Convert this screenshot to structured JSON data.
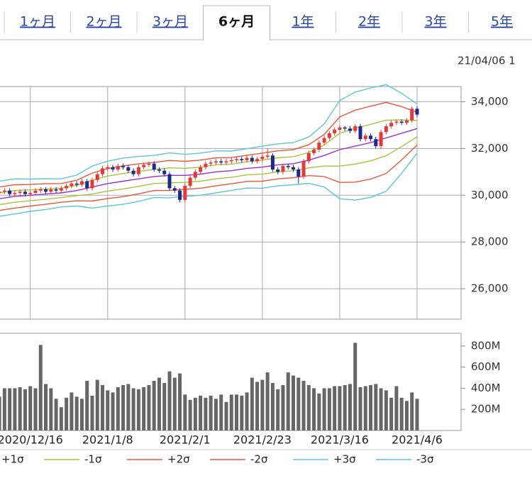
{
  "tabs": [
    "1ヶ月",
    "2ヶ月",
    "3ヶ月",
    "6ヶ月",
    "1年",
    "2年",
    "3年",
    "5年"
  ],
  "selected_tab": 3,
  "date": "21/04/06 1",
  "chart_data": [
    {
      "type": "candlestick",
      "open": [
        30100,
        30150,
        30200,
        30050,
        30100,
        30150,
        30050,
        30100,
        30200,
        30250,
        30150,
        30250,
        30200,
        30300,
        30400,
        30500,
        30450,
        30600,
        30300,
        30650,
        30900,
        31150,
        31200,
        31100,
        31250,
        31200,
        31050,
        30900,
        31200,
        31300,
        31350,
        31100,
        31050,
        30900,
        30300,
        30200,
        29800,
        30400,
        30750,
        31000,
        31200,
        31350,
        31400,
        31450,
        31400,
        31450,
        31500,
        31550,
        31500,
        31600,
        31450,
        31550,
        31650,
        31700,
        31100,
        31000,
        31250,
        31200,
        31100,
        30800,
        31450,
        31800,
        31950,
        32250,
        32450,
        32650,
        32800,
        32900,
        32850,
        32750,
        32950,
        32400,
        32550,
        32400,
        32100,
        32700,
        32950,
        33100,
        33150,
        33100,
        33200,
        33700
      ],
      "high": [
        30250,
        30300,
        30300,
        30200,
        30250,
        30250,
        30200,
        30300,
        30350,
        30350,
        30350,
        30350,
        30400,
        30500,
        30600,
        30600,
        30700,
        30700,
        30750,
        31000,
        31250,
        31300,
        31300,
        31350,
        31350,
        31300,
        31150,
        31300,
        31400,
        31450,
        31450,
        31200,
        31150,
        31000,
        30400,
        30300,
        30500,
        30850,
        31100,
        31300,
        31450,
        31500,
        31550,
        31550,
        31550,
        31600,
        31650,
        31650,
        31700,
        31700,
        31650,
        31750,
        32000,
        31800,
        31200,
        31350,
        31350,
        31300,
        31200,
        31550,
        31900,
        32050,
        32350,
        32550,
        32750,
        32900,
        33000,
        32950,
        32950,
        33050,
        33050,
        32650,
        32650,
        32500,
        32800,
        33050,
        33200,
        33250,
        33250,
        33300,
        33800,
        33800
      ],
      "low": [
        30000,
        30050,
        29950,
        29950,
        30000,
        29950,
        29950,
        30000,
        30100,
        30050,
        30050,
        30100,
        30100,
        30200,
        30300,
        30350,
        30350,
        30200,
        30200,
        30550,
        30800,
        31050,
        31000,
        31000,
        31100,
        30950,
        30800,
        30800,
        31100,
        31200,
        31000,
        30950,
        30800,
        30200,
        30100,
        29700,
        29700,
        30300,
        30650,
        30900,
        31100,
        31250,
        31300,
        31300,
        31300,
        31350,
        31400,
        31400,
        31400,
        31350,
        31350,
        31450,
        31550,
        31000,
        30900,
        30900,
        31100,
        31000,
        30500,
        30700,
        31350,
        31700,
        31850,
        32150,
        32350,
        32550,
        32700,
        32750,
        32650,
        32650,
        32300,
        32300,
        32300,
        32000,
        32000,
        32600,
        32850,
        33000,
        33000,
        33000,
        33100,
        33350
      ],
      "close": [
        30150,
        30200,
        30050,
        30100,
        30150,
        30050,
        30100,
        30200,
        30250,
        30150,
        30250,
        30200,
        30300,
        30400,
        30500,
        30450,
        30600,
        30300,
        30650,
        30900,
        31150,
        31200,
        31100,
        31250,
        31200,
        31050,
        30900,
        31200,
        31300,
        31350,
        31100,
        31050,
        30900,
        30300,
        30200,
        29800,
        30400,
        30750,
        31000,
        31200,
        31350,
        31400,
        31450,
        31400,
        31450,
        31500,
        31550,
        31500,
        31600,
        31450,
        31550,
        31650,
        31700,
        31100,
        31000,
        31250,
        31200,
        31100,
        30800,
        31450,
        31800,
        31950,
        32250,
        32450,
        32650,
        32800,
        32900,
        32850,
        32750,
        32950,
        32400,
        32550,
        32400,
        32100,
        32700,
        32950,
        33100,
        33150,
        33100,
        33200,
        33700,
        33450
      ],
      "up_color": "#e23a3a",
      "down_color": "#1c2a8a",
      "ylim": [
        24700,
        34650
      ],
      "yticks": [
        {
          "value": 26000,
          "label": "26,000"
        },
        {
          "value": 28000,
          "label": "28,000"
        },
        {
          "value": 30000,
          "label": "30,000"
        },
        {
          "value": 32000,
          "label": "32,000"
        },
        {
          "value": 34000,
          "label": "34,000"
        }
      ],
      "grid": true,
      "line_x": [
        0,
        3,
        6,
        9,
        12,
        15,
        18,
        21,
        24,
        27,
        30,
        33,
        36,
        39,
        42,
        45,
        48,
        51,
        54,
        57,
        60,
        63,
        66,
        69,
        72,
        75,
        78,
        81
      ],
      "series": [
        {
          "color": "#9b30d0",
          "values": [
            29850,
            29950,
            30000,
            30050,
            30100,
            30200,
            30350,
            30500,
            30600,
            30700,
            30800,
            30850,
            30850,
            30900,
            31000,
            31050,
            31150,
            31200,
            31300,
            31350,
            31500,
            31700,
            31950,
            32100,
            32250,
            32450,
            32650,
            32850
          ]
        },
        {
          "name": "+1σ",
          "color": "#a9c43c",
          "values": [
            30100,
            30200,
            30230,
            30270,
            30300,
            30420,
            30650,
            30820,
            30930,
            31020,
            31100,
            31170,
            31150,
            31200,
            31300,
            31330,
            31430,
            31500,
            31600,
            31650,
            31830,
            32150,
            32650,
            32870,
            33030,
            33210,
            33220,
            33200
          ]
        },
        {
          "name": "-1σ",
          "color": "#a9c43c",
          "values": [
            29600,
            29700,
            29770,
            29830,
            29900,
            29980,
            30050,
            30180,
            30270,
            30380,
            30500,
            30530,
            30550,
            30600,
            30700,
            30770,
            30870,
            30900,
            31000,
            31050,
            31170,
            31250,
            31250,
            31330,
            31470,
            31690,
            32080,
            32500
          ]
        },
        {
          "name": "+2σ",
          "color": "#e8583a",
          "values": [
            30350,
            30450,
            30460,
            30490,
            30500,
            30640,
            30950,
            31140,
            31260,
            31340,
            31400,
            31490,
            31450,
            31500,
            31600,
            31610,
            31710,
            31800,
            31900,
            31950,
            32160,
            32600,
            33350,
            33640,
            33810,
            33970,
            33790,
            33550
          ]
        },
        {
          "name": "-2σ",
          "color": "#e8583a",
          "values": [
            29350,
            29450,
            29540,
            29610,
            29700,
            29760,
            29750,
            29860,
            29940,
            30060,
            30200,
            30210,
            30250,
            30300,
            30400,
            30490,
            30590,
            30600,
            30700,
            30750,
            30840,
            30800,
            30550,
            30560,
            30690,
            30930,
            31510,
            32150
          ]
        },
        {
          "name": "+3σ",
          "color": "#5cc6d6",
          "values": [
            30600,
            30700,
            30690,
            30710,
            30700,
            30860,
            31250,
            31460,
            31590,
            31660,
            31700,
            31810,
            31750,
            31800,
            31900,
            31890,
            31990,
            32100,
            32200,
            32250,
            32490,
            33050,
            34050,
            34410,
            34590,
            34730,
            34360,
            33900
          ]
        },
        {
          "name": "-3σ",
          "color": "#5cc6d6",
          "values": [
            29100,
            29200,
            29310,
            29390,
            29500,
            29540,
            29450,
            29540,
            29610,
            29740,
            29900,
            29890,
            29950,
            30000,
            30100,
            30210,
            30310,
            30300,
            30400,
            30450,
            30510,
            30350,
            29850,
            29790,
            29910,
            30170,
            30940,
            31800
          ]
        }
      ]
    },
    {
      "type": "bar",
      "categories": [
        null,
        null,
        null,
        null,
        null,
        null,
        "2020/12/16",
        null,
        null,
        null,
        null,
        null,
        null,
        null,
        null,
        null,
        null,
        null,
        null,
        null,
        null,
        "2021/1/8",
        null,
        null,
        null,
        null,
        null,
        null,
        null,
        null,
        null,
        null,
        null,
        null,
        null,
        null,
        "2021/2/1",
        null,
        null,
        null,
        null,
        null,
        null,
        null,
        null,
        null,
        null,
        null,
        null,
        null,
        null,
        "2021/2/23",
        null,
        null,
        null,
        null,
        null,
        null,
        null,
        null,
        null,
        null,
        null,
        null,
        null,
        null,
        "2021/3/16",
        null,
        null,
        null,
        null,
        null,
        null,
        null,
        null,
        null,
        null,
        null,
        null,
        null,
        null,
        "2021/4/6"
      ],
      "values": [
        320,
        400,
        400,
        400,
        410,
        390,
        420,
        400,
        810,
        440,
        400,
        300,
        220,
        310,
        360,
        320,
        300,
        470,
        330,
        480,
        430,
        380,
        360,
        410,
        430,
        440,
        400,
        390,
        410,
        430,
        470,
        500,
        450,
        560,
        500,
        540,
        340,
        290,
        310,
        330,
        310,
        330,
        300,
        340,
        270,
        340,
        340,
        330,
        360,
        500,
        460,
        480,
        550,
        450,
        390,
        430,
        550,
        520,
        500,
        470,
        430,
        400,
        350,
        400,
        400,
        420,
        420,
        430,
        440,
        830,
        410,
        420,
        430,
        440,
        400,
        380,
        310,
        420,
        310,
        280,
        360,
        300
      ],
      "color": "#666666",
      "ylim": [
        0,
        920
      ],
      "yticks": [
        {
          "value": 200,
          "label": "200M"
        },
        {
          "value": 400,
          "label": "400M"
        },
        {
          "value": 600,
          "label": "600M"
        },
        {
          "value": 800,
          "label": "800M"
        }
      ]
    }
  ]
}
